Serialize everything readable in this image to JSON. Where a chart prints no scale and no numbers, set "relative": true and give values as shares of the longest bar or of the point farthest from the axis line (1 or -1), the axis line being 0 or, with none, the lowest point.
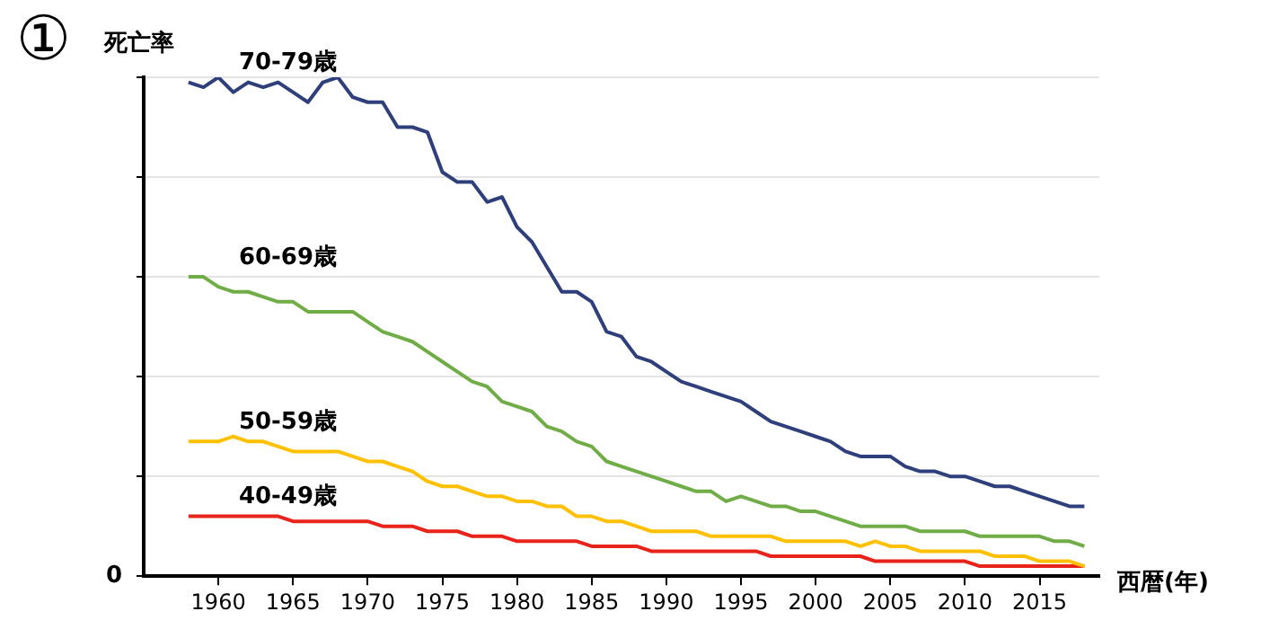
{
  "chart_data": {
    "type": "line",
    "title": "①",
    "ylabel": "死亡率",
    "xlabel": "西暦(年)",
    "relative": true,
    "grid": "y",
    "legend": false,
    "marker": "none",
    "line_style": "solid",
    "annotations": [
      "0"
    ],
    "x": [
      1958,
      1959,
      1960,
      1961,
      1962,
      1963,
      1964,
      1965,
      1966,
      1967,
      1968,
      1969,
      1970,
      1971,
      1972,
      1973,
      1974,
      1975,
      1976,
      1977,
      1978,
      1979,
      1980,
      1981,
      1982,
      1983,
      1984,
      1985,
      1986,
      1987,
      1988,
      1989,
      1990,
      1991,
      1992,
      1993,
      1994,
      1995,
      1996,
      1997,
      1998,
      1999,
      2000,
      2001,
      2002,
      2003,
      2004,
      2005,
      2006,
      2007,
      2008,
      2009,
      2010,
      2011,
      2012,
      2013,
      2014,
      2015,
      2016,
      2017,
      2018
    ],
    "xlim": [
      1955,
      2019
    ],
    "xticks": [
      1960,
      1965,
      1970,
      1975,
      1980,
      1985,
      1990,
      1995,
      2000,
      2005,
      2010,
      2015
    ],
    "series": [
      {
        "name": "70-79歳",
        "color": "#2e3f7c",
        "values": [
          0.99,
          0.98,
          1.0,
          0.97,
          0.99,
          0.98,
          0.99,
          0.97,
          0.95,
          0.99,
          1.0,
          0.96,
          0.95,
          0.95,
          0.9,
          0.9,
          0.89,
          0.81,
          0.79,
          0.79,
          0.75,
          0.76,
          0.7,
          0.67,
          0.62,
          0.57,
          0.57,
          0.55,
          0.49,
          0.48,
          0.44,
          0.43,
          0.41,
          0.39,
          0.38,
          0.37,
          0.36,
          0.35,
          0.33,
          0.31,
          0.3,
          0.29,
          0.28,
          0.27,
          0.25,
          0.24,
          0.24,
          0.24,
          0.22,
          0.21,
          0.21,
          0.2,
          0.2,
          0.19,
          0.18,
          0.18,
          0.17,
          0.16,
          0.15,
          0.14,
          0.14
        ]
      },
      {
        "name": "60-69歳",
        "color": "#70ad47",
        "values": [
          0.6,
          0.6,
          0.58,
          0.57,
          0.57,
          0.56,
          0.55,
          0.55,
          0.53,
          0.53,
          0.53,
          0.53,
          0.51,
          0.49,
          0.48,
          0.47,
          0.45,
          0.43,
          0.41,
          0.39,
          0.38,
          0.35,
          0.34,
          0.33,
          0.3,
          0.29,
          0.27,
          0.26,
          0.23,
          0.22,
          0.21,
          0.2,
          0.19,
          0.18,
          0.17,
          0.17,
          0.15,
          0.16,
          0.15,
          0.14,
          0.14,
          0.13,
          0.13,
          0.12,
          0.11,
          0.1,
          0.1,
          0.1,
          0.1,
          0.09,
          0.09,
          0.09,
          0.09,
          0.08,
          0.08,
          0.08,
          0.08,
          0.08,
          0.07,
          0.07,
          0.06
        ]
      },
      {
        "name": "50-59歳",
        "color": "#ffc000",
        "values": [
          0.27,
          0.27,
          0.27,
          0.28,
          0.27,
          0.27,
          0.26,
          0.25,
          0.25,
          0.25,
          0.25,
          0.24,
          0.23,
          0.23,
          0.22,
          0.21,
          0.19,
          0.18,
          0.18,
          0.17,
          0.16,
          0.16,
          0.15,
          0.15,
          0.14,
          0.14,
          0.12,
          0.12,
          0.11,
          0.11,
          0.1,
          0.09,
          0.09,
          0.09,
          0.09,
          0.08,
          0.08,
          0.08,
          0.08,
          0.08,
          0.07,
          0.07,
          0.07,
          0.07,
          0.07,
          0.06,
          0.07,
          0.06,
          0.06,
          0.05,
          0.05,
          0.05,
          0.05,
          0.05,
          0.04,
          0.04,
          0.04,
          0.03,
          0.03,
          0.03,
          0.02
        ]
      },
      {
        "name": "40-49歳",
        "color": "#e8231a",
        "values": [
          0.12,
          0.12,
          0.12,
          0.12,
          0.12,
          0.12,
          0.12,
          0.11,
          0.11,
          0.11,
          0.11,
          0.11,
          0.11,
          0.1,
          0.1,
          0.1,
          0.09,
          0.09,
          0.09,
          0.08,
          0.08,
          0.08,
          0.07,
          0.07,
          0.07,
          0.07,
          0.07,
          0.06,
          0.06,
          0.06,
          0.06,
          0.05,
          0.05,
          0.05,
          0.05,
          0.05,
          0.05,
          0.05,
          0.05,
          0.04,
          0.04,
          0.04,
          0.04,
          0.04,
          0.04,
          0.04,
          0.03,
          0.03,
          0.03,
          0.03,
          0.03,
          0.03,
          0.03,
          0.02,
          0.02,
          0.02,
          0.02,
          0.02,
          0.02,
          0.02,
          0.02
        ]
      }
    ]
  }
}
